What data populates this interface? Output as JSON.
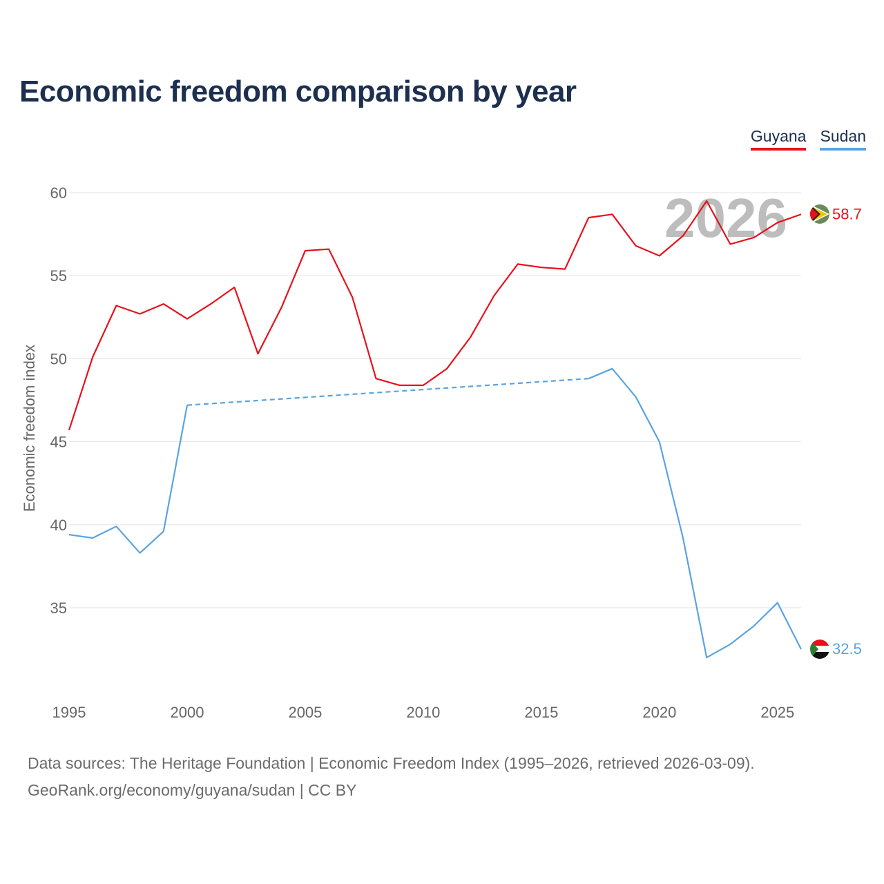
{
  "chart_data": {
    "type": "line",
    "title": "Economic freedom comparison by year",
    "ylabel": "Economic freedom index",
    "xlabel": "",
    "ylim": [
      30,
      61
    ],
    "xlim": [
      1995,
      2026
    ],
    "yticks": [
      35,
      40,
      45,
      50,
      55,
      60
    ],
    "xticks": [
      1995,
      2000,
      2005,
      2010,
      2015,
      2020,
      2025
    ],
    "grid": true,
    "legend_position": "top-right",
    "current_year": "2026",
    "series": [
      {
        "name": "Guyana",
        "color": "#e8101a",
        "end_label": "58.7",
        "points": [
          [
            1995,
            45.7
          ],
          [
            1996,
            50.1
          ],
          [
            1997,
            53.2
          ],
          [
            1998,
            52.7
          ],
          [
            1999,
            53.3
          ],
          [
            2000,
            52.4
          ],
          [
            2001,
            53.3
          ],
          [
            2002,
            54.3
          ],
          [
            2003,
            50.3
          ],
          [
            2004,
            53.1
          ],
          [
            2005,
            56.5
          ],
          [
            2006,
            56.6
          ],
          [
            2007,
            53.7
          ],
          [
            2008,
            48.8
          ],
          [
            2009,
            48.4
          ],
          [
            2010,
            48.4
          ],
          [
            2011,
            49.4
          ],
          [
            2012,
            51.3
          ],
          [
            2013,
            53.8
          ],
          [
            2014,
            55.7
          ],
          [
            2015,
            55.5
          ],
          [
            2016,
            55.4
          ],
          [
            2017,
            58.5
          ],
          [
            2018,
            58.7
          ],
          [
            2019,
            56.8
          ],
          [
            2020,
            56.2
          ],
          [
            2021,
            57.4
          ],
          [
            2022,
            59.5
          ],
          [
            2023,
            56.9
          ],
          [
            2024,
            57.3
          ],
          [
            2025,
            58.2
          ],
          [
            2026,
            58.7
          ]
        ],
        "gaps": []
      },
      {
        "name": "Sudan",
        "color": "#5aa3e0",
        "end_label": "32.5",
        "points": [
          [
            1995,
            39.4
          ],
          [
            1996,
            39.2
          ],
          [
            1997,
            39.9
          ],
          [
            1998,
            38.3
          ],
          [
            1999,
            39.6
          ],
          [
            2000,
            47.2
          ],
          [
            2017,
            48.8
          ],
          [
            2018,
            49.4
          ],
          [
            2019,
            47.7
          ],
          [
            2020,
            45.0
          ],
          [
            2021,
            39.2
          ],
          [
            2022,
            32.0
          ],
          [
            2023,
            32.8
          ],
          [
            2024,
            33.9
          ],
          [
            2025,
            35.3
          ],
          [
            2026,
            32.5
          ]
        ],
        "gaps": [
          [
            2000,
            2017
          ]
        ]
      }
    ]
  },
  "legend": {
    "items": [
      {
        "label": "Guyana",
        "color": "#e8101a"
      },
      {
        "label": "Sudan",
        "color": "#5aa3e0"
      }
    ]
  },
  "footer": {
    "source_line": "Data sources: The Heritage Foundation | Economic Freedom Index (1995–2026, retrieved 2026-03-09).",
    "url_line": "GeoRank.org/economy/guyana/sudan | CC BY"
  }
}
